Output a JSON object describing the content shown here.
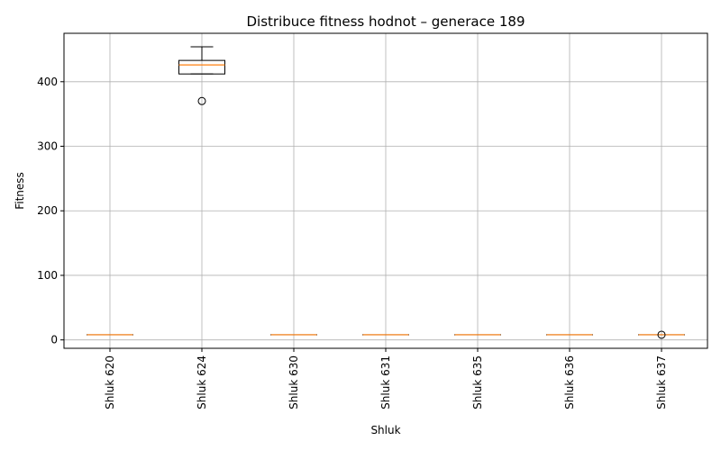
{
  "chart_data": {
    "type": "box",
    "title": "Distribuce fitness hodnot – generace 189",
    "xlabel": "Shluk",
    "ylabel": "Fitness",
    "ylim": [
      -13,
      475
    ],
    "yticks": [
      0,
      100,
      200,
      300,
      400
    ],
    "grid": true,
    "median_color": "#ff7f0e",
    "categories": [
      "Shluk 620",
      "Shluk 624",
      "Shluk 630",
      "Shluk 631",
      "Shluk 635",
      "Shluk 636",
      "Shluk 637"
    ],
    "boxes": [
      {
        "whisker_low": 8,
        "q1": 8,
        "median": 8,
        "q3": 8,
        "whisker_high": 8,
        "fliers": []
      },
      {
        "whisker_low": 412,
        "q1": 412,
        "median": 426,
        "q3": 433,
        "whisker_high": 454,
        "fliers": [
          370
        ]
      },
      {
        "whisker_low": 8,
        "q1": 8,
        "median": 8,
        "q3": 8,
        "whisker_high": 8,
        "fliers": []
      },
      {
        "whisker_low": 8,
        "q1": 8,
        "median": 8,
        "q3": 8,
        "whisker_high": 8,
        "fliers": []
      },
      {
        "whisker_low": 8,
        "q1": 8,
        "median": 8,
        "q3": 8,
        "whisker_high": 8,
        "fliers": []
      },
      {
        "whisker_low": 8,
        "q1": 8,
        "median": 8,
        "q3": 8,
        "whisker_high": 8,
        "fliers": []
      },
      {
        "whisker_low": 8,
        "q1": 8,
        "median": 8,
        "q3": 8,
        "whisker_high": 8,
        "fliers": [
          8
        ]
      }
    ]
  }
}
